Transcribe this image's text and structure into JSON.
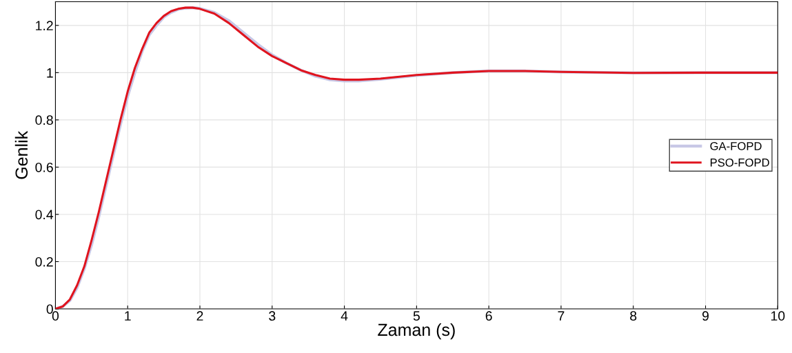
{
  "chart_data": {
    "type": "line",
    "xlabel": "Zaman (s)",
    "ylabel": "Genlik",
    "xlim": [
      0,
      10
    ],
    "ylim": [
      0,
      1.3
    ],
    "xticks": [
      0,
      1,
      2,
      3,
      4,
      5,
      6,
      7,
      8,
      9,
      10
    ],
    "yticks": [
      0,
      0.2,
      0.4,
      0.6,
      0.8,
      1,
      1.2
    ],
    "grid": true,
    "legend": "right",
    "line_style": "solid",
    "marker": "none",
    "series": [
      {
        "name": "GA-FOPD",
        "color": "#c8c8e6",
        "x": [
          0,
          0.1,
          0.2,
          0.3,
          0.4,
          0.5,
          0.6,
          0.7,
          0.8,
          0.9,
          1.0,
          1.1,
          1.2,
          1.3,
          1.4,
          1.5,
          1.6,
          1.7,
          1.8,
          1.9,
          2.0,
          2.2,
          2.4,
          2.6,
          2.8,
          3.0,
          3.2,
          3.4,
          3.6,
          3.8,
          4.0,
          4.2,
          4.5,
          5.0,
          5.5,
          6.0,
          6.5,
          7.0,
          8.0,
          9.0,
          10.0
        ],
        "values": [
          0,
          0.01,
          0.035,
          0.09,
          0.17,
          0.27,
          0.39,
          0.52,
          0.65,
          0.78,
          0.9,
          1.0,
          1.09,
          1.16,
          1.2,
          1.235,
          1.255,
          1.268,
          1.273,
          1.275,
          1.272,
          1.255,
          1.22,
          1.17,
          1.12,
          1.075,
          1.04,
          1.01,
          0.985,
          0.97,
          0.965,
          0.965,
          0.972,
          0.988,
          1.0,
          1.007,
          1.007,
          1.003,
          0.999,
          1.0,
          1.0
        ]
      },
      {
        "name": "PSO-FOPD",
        "color": "#e0141e",
        "x": [
          0,
          0.1,
          0.2,
          0.3,
          0.4,
          0.5,
          0.6,
          0.7,
          0.8,
          0.9,
          1.0,
          1.1,
          1.2,
          1.3,
          1.4,
          1.5,
          1.6,
          1.7,
          1.8,
          1.9,
          2.0,
          2.2,
          2.4,
          2.6,
          2.8,
          3.0,
          3.2,
          3.4,
          3.6,
          3.8,
          4.0,
          4.2,
          4.5,
          5.0,
          5.5,
          6.0,
          6.5,
          7.0,
          8.0,
          9.0,
          10.0
        ],
        "values": [
          0,
          0.01,
          0.04,
          0.1,
          0.18,
          0.29,
          0.41,
          0.54,
          0.67,
          0.8,
          0.92,
          1.02,
          1.1,
          1.17,
          1.21,
          1.24,
          1.26,
          1.27,
          1.275,
          1.275,
          1.27,
          1.25,
          1.21,
          1.16,
          1.11,
          1.07,
          1.04,
          1.01,
          0.99,
          0.975,
          0.97,
          0.97,
          0.975,
          0.99,
          1.0,
          1.007,
          1.007,
          1.003,
          0.999,
          1.0,
          1.0
        ]
      }
    ]
  }
}
